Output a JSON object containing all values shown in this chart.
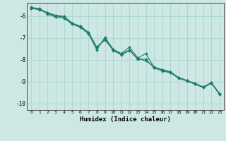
{
  "xlabel": "Humidex (Indice chaleur)",
  "ylabel": "",
  "background_color": "#cde8e4",
  "grid_color": "#a8d5cc",
  "line_color": "#1e7a6e",
  "xlim": [
    -0.5,
    23.5
  ],
  "ylim": [
    -10.3,
    -5.4
  ],
  "yticks": [
    -10,
    -9,
    -8,
    -7,
    -6
  ],
  "xticks": [
    0,
    1,
    2,
    3,
    4,
    5,
    6,
    7,
    8,
    9,
    10,
    11,
    12,
    13,
    14,
    15,
    16,
    17,
    18,
    19,
    20,
    21,
    22,
    23
  ],
  "series": [
    [
      [
        0,
        -5.65
      ],
      [
        1,
        -5.65
      ],
      [
        2,
        -5.92
      ],
      [
        3,
        -6.05
      ],
      [
        4,
        -6.1
      ],
      [
        5,
        -6.38
      ],
      [
        6,
        -6.52
      ],
      [
        7,
        -6.82
      ],
      [
        8,
        -7.55
      ],
      [
        9,
        -6.97
      ],
      [
        10,
        -7.52
      ],
      [
        11,
        -7.72
      ],
      [
        12,
        -7.42
      ],
      [
        13,
        -7.92
      ],
      [
        14,
        -7.72
      ],
      [
        15,
        -8.35
      ],
      [
        16,
        -8.45
      ],
      [
        17,
        -8.55
      ],
      [
        18,
        -8.82
      ],
      [
        19,
        -8.95
      ],
      [
        20,
        -9.1
      ],
      [
        21,
        -9.25
      ],
      [
        22,
        -9.05
      ],
      [
        23,
        -9.55
      ]
    ],
    [
      [
        0,
        -5.65
      ],
      [
        1,
        -5.72
      ],
      [
        2,
        -5.88
      ],
      [
        3,
        -6.0
      ],
      [
        4,
        -6.05
      ],
      [
        5,
        -6.35
      ],
      [
        6,
        -6.5
      ],
      [
        7,
        -6.78
      ],
      [
        8,
        -7.45
      ],
      [
        9,
        -7.05
      ],
      [
        10,
        -7.58
      ],
      [
        11,
        -7.78
      ],
      [
        12,
        -7.58
      ],
      [
        13,
        -7.98
      ],
      [
        14,
        -7.98
      ],
      [
        15,
        -8.38
      ],
      [
        16,
        -8.52
      ],
      [
        17,
        -8.6
      ],
      [
        18,
        -8.85
      ],
      [
        19,
        -8.98
      ],
      [
        20,
        -9.12
      ],
      [
        21,
        -9.28
      ],
      [
        22,
        -9.08
      ],
      [
        23,
        -9.6
      ]
    ],
    [
      [
        0,
        -5.6
      ],
      [
        1,
        -5.68
      ],
      [
        2,
        -5.85
      ],
      [
        3,
        -5.97
      ],
      [
        4,
        -6.02
      ],
      [
        5,
        -6.32
      ],
      [
        6,
        -6.47
      ],
      [
        7,
        -6.75
      ],
      [
        8,
        -7.42
      ],
      [
        9,
        -7.1
      ],
      [
        10,
        -7.55
      ],
      [
        11,
        -7.75
      ],
      [
        12,
        -7.55
      ],
      [
        13,
        -7.95
      ],
      [
        14,
        -8.05
      ],
      [
        15,
        -8.32
      ],
      [
        16,
        -8.48
      ],
      [
        17,
        -8.57
      ],
      [
        18,
        -8.82
      ],
      [
        19,
        -8.95
      ],
      [
        20,
        -9.08
      ],
      [
        21,
        -9.25
      ],
      [
        22,
        -9.05
      ],
      [
        23,
        -9.57
      ]
    ]
  ]
}
